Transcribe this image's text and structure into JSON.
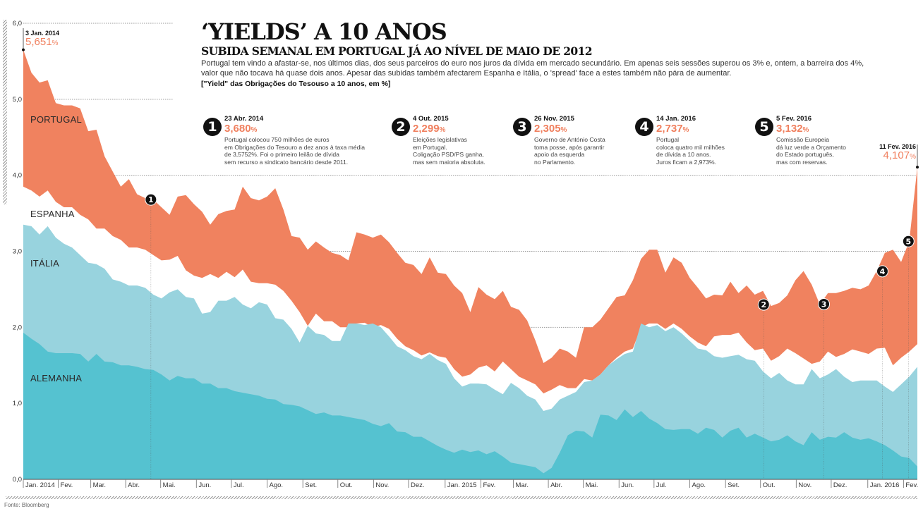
{
  "title": "‘YIELDS’ A 10 ANOS",
  "subtitle": "SUBIDA SEMANAL EM PORTUGAL JÁ AO NÍVEL DE MAIO DE 2012",
  "lead": "Portugal tem vindo a afastar-se, nos últimos dias, dos seus parceiros do euro nos juros da dívida em mercado secundário. Em apenas seis sessões superou os 3% e, ontem, a barreira dos 4%, valor que não tocava há quase dois anos. Apesar das subidas também afectarem Espanha e Itália, o 'spread' face a estes também não pára de aumentar.",
  "unit_note": "[\"Yield\" das Obrigações do Tesouso a 10 anos, em %]",
  "source": "Fonte: Bloomberg",
  "start_callout": {
    "date": "3 Jan. 2014",
    "value": "5,651",
    "pct": "%"
  },
  "end_callout": {
    "date": "11 Fev. 2016",
    "value": "4,107",
    "pct": "%"
  },
  "notes": [
    {
      "num": "1",
      "date": "23 Abr. 2014",
      "value": "3,680",
      "pct": "%",
      "desc": "Portugal colocou 750 milhões de euros\nem Obrigações do Tesouro a dez anos à taxa média\nde 3,5752%. Foi o primeiro leilão de dívida\nsem recurso a sindicato bancário desde 2011."
    },
    {
      "num": "2",
      "date": "4 Out. 2015",
      "value": "2,299",
      "pct": "%",
      "desc": "Eleições legislativas\nem Portugal.\nColigação PSD/PS ganha,\nmas sem maioria absoluta."
    },
    {
      "num": "3",
      "date": "26 Nov. 2015",
      "value": "2,305",
      "pct": "%",
      "desc": "Governo de António Costa\ntoma posse, após garantir\napoio da esquerda\nno Parlamento."
    },
    {
      "num": "4",
      "date": "14 Jan. 2016",
      "value": "2,737",
      "pct": "%",
      "desc": "Portugal\ncoloca quatro mil milhões\nde dívida a 10 anos.\nJuros ficam a 2,973%."
    },
    {
      "num": "5",
      "date": "5 Fev. 2016",
      "value": "3,132",
      "pct": "%",
      "desc": "Comissão Europeia\ndá luz verde a Orçamento\ndo Estado português,\nmas com reservas."
    }
  ],
  "chart_data": {
    "type": "area",
    "title": "‘Yields’ a 10 anos",
    "ylabel": "%",
    "xlabel": "",
    "ylim": [
      0,
      6
    ],
    "yticks": [
      "0,0",
      "1,0",
      "2,0",
      "3,0",
      "4,0",
      "5,0",
      "6,0"
    ],
    "ytick_values": [
      0,
      1,
      2,
      3,
      4,
      5,
      6
    ],
    "grid": true,
    "x_unit": "weeks since 3 Jan. 2014",
    "xticks": [
      {
        "label": "Jan. 2014",
        "week": 0
      },
      {
        "label": "Fev.",
        "week": 4.3
      },
      {
        "label": "Mar.",
        "week": 8.3
      },
      {
        "label": "Abr.",
        "week": 12.6
      },
      {
        "label": "Mai.",
        "week": 16.9
      },
      {
        "label": "Jun.",
        "week": 21.3
      },
      {
        "label": "Jul.",
        "week": 25.6
      },
      {
        "label": "Ago.",
        "week": 30
      },
      {
        "label": "Set.",
        "week": 34.4
      },
      {
        "label": "Out.",
        "week": 38.7
      },
      {
        "label": "Nov.",
        "week": 43.1
      },
      {
        "label": "Dez.",
        "week": 47.4
      },
      {
        "label": "Jan. 2015",
        "week": 51.9
      },
      {
        "label": "Fev.",
        "week": 56.3
      },
      {
        "label": "Mar.",
        "week": 60.3
      },
      {
        "label": "Abr.",
        "week": 64.6
      },
      {
        "label": "Mai.",
        "week": 68.9
      },
      {
        "label": "Jun.",
        "week": 73.3
      },
      {
        "label": "Jul.",
        "week": 77.6
      },
      {
        "label": "Ago.",
        "week": 82
      },
      {
        "label": "Set.",
        "week": 86.4
      },
      {
        "label": "Out.",
        "week": 90.7
      },
      {
        "label": "Nov.",
        "week": 95.1
      },
      {
        "label": "Dez.",
        "week": 99.4
      },
      {
        "label": "Jan. 2016",
        "week": 103.9
      },
      {
        "label": "Fev.",
        "week": 108.3
      }
    ],
    "markers": [
      {
        "num": "1",
        "week": 15.7,
        "value": 3.68
      },
      {
        "num": "2",
        "week": 91.1,
        "value": 2.299
      },
      {
        "num": "3",
        "week": 98.5,
        "value": 2.305
      },
      {
        "num": "4",
        "week": 105.7,
        "value": 2.737
      },
      {
        "num": "5",
        "week": 108.9,
        "value": 3.132
      }
    ],
    "series": [
      {
        "name": "PORTUGAL",
        "color": "#f0825f",
        "values": [
          5.651,
          5.35,
          5.22,
          5.25,
          4.95,
          4.92,
          4.92,
          4.88,
          4.58,
          4.6,
          4.25,
          4.05,
          3.85,
          3.95,
          3.75,
          3.7,
          3.68,
          3.58,
          3.48,
          3.72,
          3.74,
          3.62,
          3.52,
          3.35,
          3.49,
          3.53,
          3.55,
          3.85,
          3.7,
          3.67,
          3.72,
          3.83,
          3.55,
          3.2,
          3.18,
          3.02,
          3.13,
          3.05,
          2.98,
          2.95,
          2.88,
          3.25,
          3.22,
          3.18,
          3.22,
          3.12,
          2.98,
          2.85,
          2.82,
          2.7,
          2.92,
          2.72,
          2.7,
          2.55,
          2.45,
          2.2,
          2.53,
          2.43,
          2.37,
          2.48,
          2.27,
          2.23,
          2.09,
          1.83,
          1.53,
          1.6,
          1.72,
          1.68,
          1.6,
          2.0,
          2.0,
          2.1,
          2.25,
          2.4,
          2.42,
          2.62,
          2.9,
          3.02,
          3.02,
          2.72,
          2.92,
          2.85,
          2.65,
          2.52,
          2.38,
          2.43,
          2.42,
          2.6,
          2.45,
          2.55,
          2.43,
          2.48,
          2.28,
          2.32,
          2.42,
          2.62,
          2.74,
          2.56,
          2.3,
          2.45,
          2.45,
          2.48,
          2.52,
          2.5,
          2.55,
          2.74,
          2.98,
          3.02,
          2.86,
          3.132,
          4.107
        ]
      },
      {
        "name": "ESPANHA",
        "color": "#ffffff",
        "values": [
          3.85,
          3.8,
          3.72,
          3.8,
          3.65,
          3.58,
          3.58,
          3.48,
          3.42,
          3.3,
          3.3,
          3.2,
          3.15,
          3.05,
          3.05,
          3.02,
          2.95,
          2.88,
          2.89,
          2.94,
          2.75,
          2.68,
          2.65,
          2.7,
          2.65,
          2.73,
          2.66,
          2.76,
          2.6,
          2.58,
          2.58,
          2.56,
          2.48,
          2.35,
          2.2,
          2.02,
          2.18,
          2.08,
          2.08,
          2.0,
          2.0,
          2.05,
          2.06,
          2.0,
          2.03,
          1.98,
          1.85,
          1.75,
          1.7,
          1.63,
          1.67,
          1.62,
          1.6,
          1.45,
          1.35,
          1.38,
          1.47,
          1.5,
          1.42,
          1.55,
          1.45,
          1.35,
          1.3,
          1.25,
          1.13,
          1.18,
          1.24,
          1.2,
          1.2,
          1.32,
          1.3,
          1.38,
          1.5,
          1.6,
          1.68,
          1.72,
          2.0,
          2.05,
          2.05,
          1.98,
          2.05,
          1.98,
          1.88,
          1.8,
          1.75,
          1.88,
          1.9,
          1.9,
          1.93,
          1.8,
          1.7,
          1.72,
          1.56,
          1.62,
          1.72,
          1.66,
          1.59,
          1.52,
          1.55,
          1.68,
          1.61,
          1.65,
          1.71,
          1.68,
          1.65,
          1.72,
          1.73,
          1.5,
          1.6,
          1.68,
          1.78
        ]
      },
      {
        "name": "ITÁLIA",
        "color": "#98d3de",
        "values": [
          3.35,
          3.33,
          3.22,
          3.33,
          3.18,
          3.1,
          3.05,
          2.95,
          2.85,
          2.83,
          2.77,
          2.63,
          2.6,
          2.55,
          2.55,
          2.52,
          2.43,
          2.38,
          2.46,
          2.5,
          2.4,
          2.38,
          2.18,
          2.2,
          2.35,
          2.35,
          2.4,
          2.3,
          2.25,
          2.33,
          2.3,
          2.12,
          2.1,
          1.98,
          1.8,
          2.02,
          1.92,
          1.9,
          1.82,
          1.82,
          2.05,
          2.05,
          2.03,
          2.05,
          2.0,
          1.88,
          1.75,
          1.7,
          1.62,
          1.58,
          1.65,
          1.57,
          1.52,
          1.33,
          1.22,
          1.26,
          1.26,
          1.25,
          1.18,
          1.12,
          1.27,
          1.2,
          1.1,
          1.05,
          0.9,
          0.93,
          1.05,
          1.1,
          1.15,
          1.28,
          1.3,
          1.38,
          1.5,
          1.58,
          1.65,
          1.68,
          2.05,
          2.0,
          2.03,
          1.95,
          2.0,
          1.92,
          1.82,
          1.72,
          1.7,
          1.62,
          1.6,
          1.62,
          1.64,
          1.58,
          1.56,
          1.42,
          1.33,
          1.4,
          1.3,
          1.25,
          1.25,
          1.45,
          1.33,
          1.38,
          1.45,
          1.35,
          1.28,
          1.3,
          1.3,
          1.3,
          1.22,
          1.15,
          1.25,
          1.35,
          1.48
        ]
      },
      {
        "name": "ALEMANHA",
        "color": "#55c2d0",
        "values": [
          1.93,
          1.85,
          1.78,
          1.68,
          1.66,
          1.66,
          1.66,
          1.65,
          1.55,
          1.65,
          1.55,
          1.54,
          1.5,
          1.5,
          1.48,
          1.45,
          1.44,
          1.38,
          1.3,
          1.36,
          1.33,
          1.33,
          1.26,
          1.26,
          1.2,
          1.2,
          1.16,
          1.14,
          1.12,
          1.1,
          1.06,
          1.05,
          0.99,
          0.98,
          0.96,
          0.91,
          0.86,
          0.88,
          0.84,
          0.84,
          0.82,
          0.8,
          0.78,
          0.73,
          0.7,
          0.74,
          0.63,
          0.62,
          0.56,
          0.56,
          0.5,
          0.44,
          0.39,
          0.35,
          0.39,
          0.36,
          0.38,
          0.33,
          0.37,
          0.3,
          0.22,
          0.2,
          0.18,
          0.16,
          0.08,
          0.15,
          0.35,
          0.58,
          0.64,
          0.63,
          0.55,
          0.85,
          0.84,
          0.78,
          0.92,
          0.82,
          0.9,
          0.8,
          0.74,
          0.66,
          0.65,
          0.66,
          0.66,
          0.6,
          0.68,
          0.65,
          0.55,
          0.64,
          0.68,
          0.55,
          0.6,
          0.55,
          0.5,
          0.52,
          0.58,
          0.5,
          0.45,
          0.62,
          0.52,
          0.56,
          0.55,
          0.62,
          0.55,
          0.52,
          0.54,
          0.5,
          0.45,
          0.38,
          0.3,
          0.28,
          0.17
        ]
      }
    ]
  }
}
